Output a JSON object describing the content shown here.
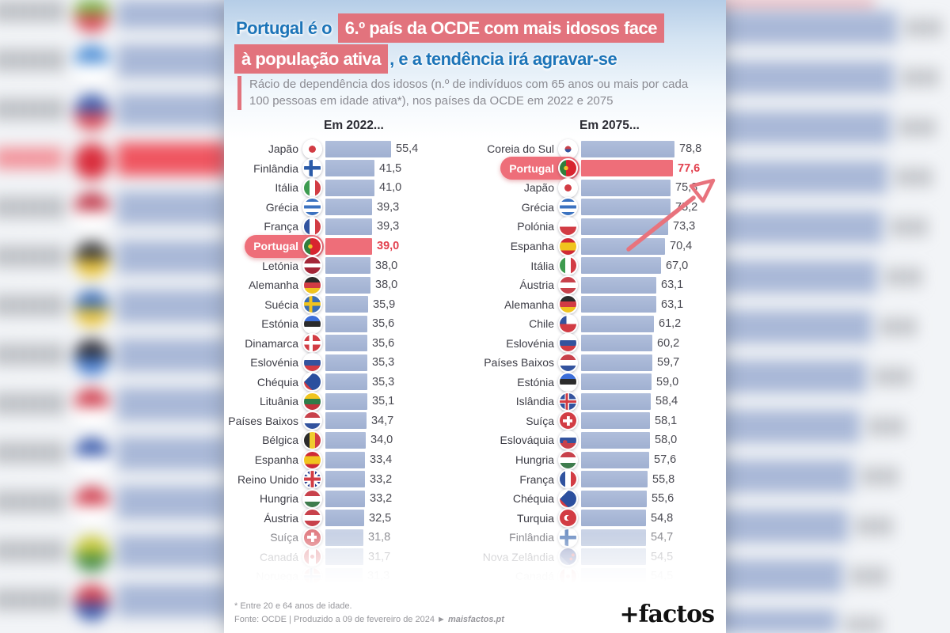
{
  "title": {
    "lead_text": "Portugal é o",
    "red_text_1": "6.º país da OCDE com mais idosos face",
    "red_text_2": "à população ativa",
    "tail_text": ", e a tendência irá agravar-se"
  },
  "subtitle": "Rácio de dependência dos idosos (n.º de indivíduos com 65 anos ou mais por cada 100 pessoas em idade ativa*), nos países da OCDE em 2022 e 2075",
  "chart_data": [
    {
      "type": "bar",
      "orientation": "horizontal",
      "title": "Em 2022...",
      "categories": [
        "Japão",
        "Finlândia",
        "Itália",
        "Grécia",
        "França",
        "Portugal",
        "Letónia",
        "Alemanha",
        "Suécia",
        "Estónia",
        "Dinamarca",
        "Eslovénia",
        "Chéquia",
        "Lituânia",
        "Países Baixos",
        "Bélgica",
        "Espanha",
        "Reino Unido",
        "Hungria",
        "Áustria",
        "Suíça",
        "Canadá",
        "Noruega"
      ],
      "values": [
        55.4,
        41.5,
        41.0,
        39.3,
        39.3,
        39.0,
        38.0,
        38.0,
        35.9,
        35.6,
        35.6,
        35.3,
        35.3,
        35.1,
        34.7,
        34.0,
        33.4,
        33.2,
        33.2,
        32.5,
        31.8,
        31.7,
        31.3
      ],
      "flags": [
        "jp",
        "fi",
        "it",
        "gr",
        "fr",
        "pt",
        "lv",
        "de",
        "se",
        "ee",
        "dk",
        "si",
        "cz",
        "lt",
        "nl",
        "be",
        "es",
        "gb",
        "hu",
        "at",
        "ch",
        "ca",
        "no"
      ],
      "highlight_index": 5,
      "fade_from_index": 20,
      "fade_opacities": [
        0.65,
        0.38,
        0.15
      ],
      "xlim": [
        0,
        80
      ],
      "value_decimal_separator": ","
    },
    {
      "type": "bar",
      "orientation": "horizontal",
      "title": "Em 2075...",
      "categories": [
        "Coreia do Sul",
        "Portugal",
        "Japão",
        "Grécia",
        "Polónia",
        "Espanha",
        "Itália",
        "Áustria",
        "Alemanha",
        "Chile",
        "Eslovénia",
        "Países Baixos",
        "Estónia",
        "Islândia",
        "Suíça",
        "Eslováquia",
        "Hungria",
        "França",
        "Chéquia",
        "Turquia",
        "Finlândia",
        "Nova Zelândia",
        "Canadá"
      ],
      "values": [
        78.8,
        77.6,
        75.3,
        75.2,
        73.3,
        70.4,
        67.0,
        63.1,
        63.1,
        61.2,
        60.2,
        59.7,
        59.0,
        58.4,
        58.1,
        58.0,
        57.6,
        55.8,
        55.6,
        54.8,
        54.7,
        54.5,
        54.5
      ],
      "flags": [
        "kr",
        "pt",
        "jp",
        "gr",
        "pl",
        "es",
        "it",
        "at",
        "de",
        "cl",
        "si",
        "nl",
        "ee",
        "is",
        "ch",
        "sk",
        "hu",
        "fr",
        "cz",
        "tr",
        "fi",
        "nz",
        "ca"
      ],
      "highlight_index": 1,
      "fade_from_index": 20,
      "fade_opacities": [
        0.65,
        0.38,
        0.15
      ],
      "xlim": [
        0,
        80
      ],
      "value_decimal_separator": ","
    }
  ],
  "footer": {
    "note": "* Entre 20 e 64 anos de idade.",
    "source": "Fonte: OCDE  |  Produzido a 09 de fevereiro de 2024 ►",
    "site": "maisfactos.pt",
    "logo": "+factos"
  },
  "colors": {
    "accent": "#e2737d",
    "highlight_bar": "#ee6e79",
    "value_red": "#e2414f",
    "bar_blue": "#a8b7d6",
    "title_blue": "#1c74b8",
    "logo_black": "#121212"
  },
  "background": {
    "left_rows": [
      {
        "c1": "#7ab648",
        "c2": "#d94f5c"
      },
      {
        "c1": "#4f8fd6",
        "c2": "#ffffff"
      },
      {
        "c1": "#3f5fae",
        "c2": "#d94f5c"
      },
      {
        "c1": "#e02d3c",
        "c2": "#b71f2e",
        "red": true
      },
      {
        "c1": "#c0384a",
        "c2": "#ffffff"
      },
      {
        "c1": "#3a3a3a",
        "c2": "#e8c23a"
      },
      {
        "c1": "#3f6fb6",
        "c2": "#e8c23a"
      },
      {
        "c1": "#2f2f38",
        "c2": "#4a7fd0"
      },
      {
        "c1": "#d04050",
        "c2": "#ffffff"
      },
      {
        "c1": "#3f5fae",
        "c2": "#ffffff"
      },
      {
        "c1": "#d04050",
        "c2": "#ffffff"
      },
      {
        "c1": "#c8c83a",
        "c2": "#4a8f4a"
      },
      {
        "c1": "#d04050",
        "c2": "#3f5fae"
      }
    ],
    "right_bar_widths": [
      258,
      254,
      250,
      246,
      240,
      233,
      226,
      219,
      211,
      203,
      196,
      189,
      182
    ]
  }
}
